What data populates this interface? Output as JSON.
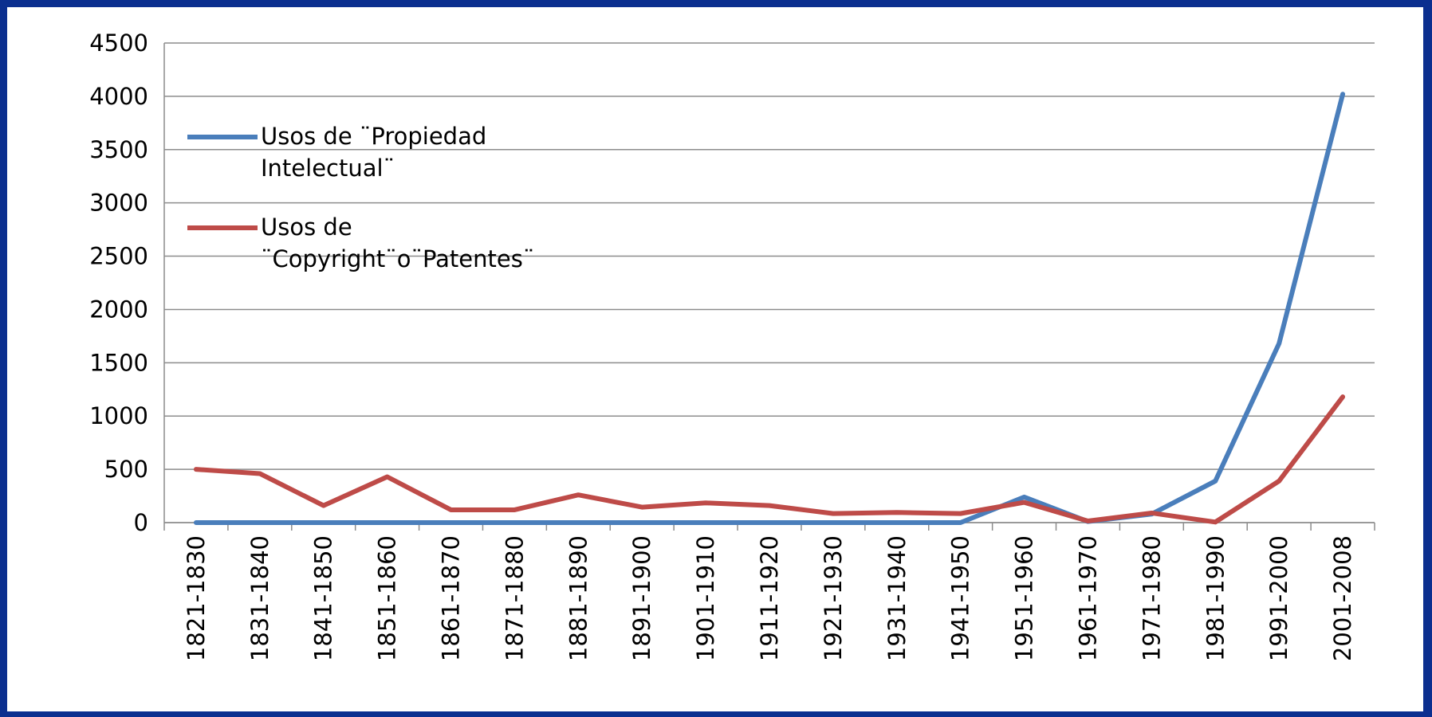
{
  "chart_data": {
    "type": "line",
    "categories": [
      "1821-1830",
      "1831-1840",
      "1841-1850",
      "1851-1860",
      "1861-1870",
      "1871-1880",
      "1881-1890",
      "1891-1900",
      "1901-1910",
      "1911-1920",
      "1921-1930",
      "1931-1940",
      "1941-1950",
      "1951-1960",
      "1961-1970",
      "1971-1980",
      "1981-1990",
      "1991-2000",
      "2001-2008"
    ],
    "series": [
      {
        "name": "Usos de ¨Propiedad Intelectual¨",
        "color": "#4a7ebb",
        "values": [
          0,
          0,
          0,
          0,
          0,
          0,
          0,
          0,
          0,
          0,
          0,
          0,
          0,
          240,
          10,
          80,
          390,
          1680,
          4020
        ]
      },
      {
        "name": "Usos de ¨Copyright¨o¨Patentes¨",
        "color": "#be4b48",
        "values": [
          500,
          460,
          160,
          430,
          120,
          120,
          260,
          145,
          185,
          160,
          85,
          95,
          85,
          190,
          15,
          90,
          5,
          390,
          1180
        ]
      }
    ],
    "ylim": [
      0,
      4500
    ],
    "yticks": [
      0,
      500,
      1000,
      1500,
      2000,
      2500,
      3000,
      3500,
      4000,
      4500
    ],
    "grid": true
  }
}
